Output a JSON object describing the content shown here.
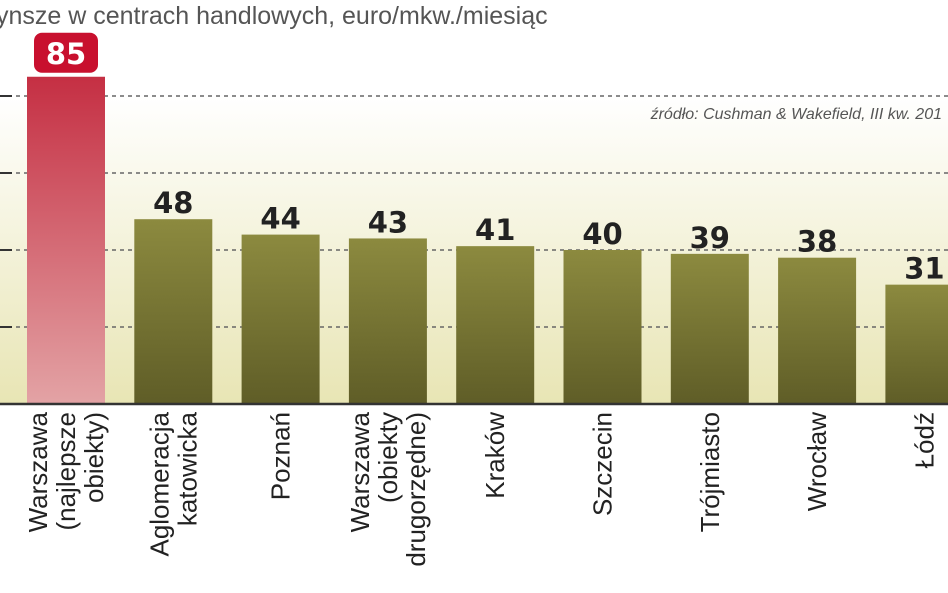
{
  "chart_data": {
    "type": "bar",
    "title": "ynsze w centrach handlowych, euro/mkw./miesiąc",
    "source_note": "źródło: Cushman & Wakefield, III kw. 201",
    "categories": [
      [
        "Warszawa",
        "(najlepsze",
        "obiekty)"
      ],
      [
        "Aglomeracja",
        "katowicka"
      ],
      [
        "Poznań"
      ],
      [
        "Warszawa",
        "(obiekty",
        "drugorzędne)"
      ],
      [
        "Kraków"
      ],
      [
        "Szczecin"
      ],
      [
        "Trójmiasto"
      ],
      [
        "Wrocław"
      ],
      [
        "Łódź"
      ]
    ],
    "values": [
      85,
      48,
      44,
      43,
      41,
      40,
      39,
      38,
      31
    ],
    "value_labels": [
      "85",
      "48",
      "44",
      "43",
      "41",
      "40",
      "39",
      "38",
      "31"
    ],
    "highlight_index": 0,
    "ylim": [
      0,
      80
    ],
    "gridlines": [
      20,
      40,
      60,
      80
    ],
    "grid": true,
    "legend": "none",
    "colors": {
      "bar_default_top": "#8c8a3f",
      "bar_default_bottom": "#5f5d27",
      "bar_highlight_top": "#c52f43",
      "bar_highlight_bottom": "#e3a3a5",
      "highlight_badge": "#c8102e",
      "plot_bg_top": "#ffffff",
      "plot_bg_bottom": "#e8e5b4",
      "grid": "#666666"
    }
  }
}
